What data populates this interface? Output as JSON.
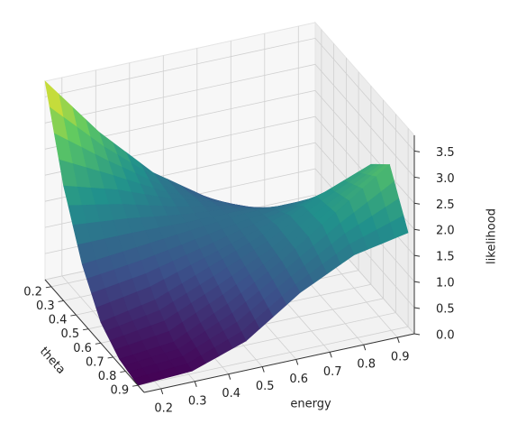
{
  "chart_data": {
    "type": "surface3d",
    "xlabel": "energy",
    "ylabel": "theta",
    "zlabel": "likelihood",
    "x": [
      0.15,
      0.31,
      0.47,
      0.63,
      0.79,
      0.95
    ],
    "y": [
      0.15,
      0.3,
      0.45,
      0.6,
      0.75,
      0.9
    ],
    "z": [
      [
        3.8,
        2.6,
        1.6,
        0.9,
        0.3,
        0.05
      ],
      [
        2.2,
        1.9,
        1.5,
        1.2,
        0.8,
        0.4
      ],
      [
        1.1,
        1.2,
        1.3,
        1.4,
        1.4,
        1.3
      ],
      [
        0.4,
        0.6,
        1.0,
        1.4,
        1.9,
        2.3
      ],
      [
        0.1,
        0.2,
        0.7,
        1.3,
        2.0,
        2.7
      ],
      [
        0.0,
        0.05,
        0.4,
        1.1,
        1.6,
        1.8
      ]
    ],
    "colormap": "viridis",
    "xlim": [
      0.15,
      0.95
    ],
    "ylim": [
      0.15,
      0.95
    ],
    "zlim": [
      0,
      3.8
    ],
    "xticks": [
      0.2,
      0.3,
      0.4,
      0.5,
      0.6,
      0.7,
      0.8,
      0.9
    ],
    "yticks": [
      0.2,
      0.3,
      0.4,
      0.5,
      0.6,
      0.7,
      0.8,
      0.9
    ],
    "zticks": [
      {
        "value": 0,
        "label": "0.0"
      },
      0.5,
      {
        "value": 1,
        "label": "1.0"
      },
      1.5,
      {
        "value": 2,
        "label": "2.0"
      },
      2.5,
      {
        "value": 3,
        "label": "3.0"
      },
      3.5
    ],
    "grid": true
  }
}
